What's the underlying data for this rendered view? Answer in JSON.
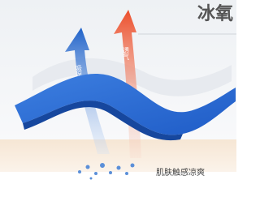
{
  "header": {
    "title": "冰氧"
  },
  "arrows": [
    {
      "label": "吸湿"
    },
    {
      "label": "透气"
    }
  ],
  "caption": "肌肤触感凉爽"
}
